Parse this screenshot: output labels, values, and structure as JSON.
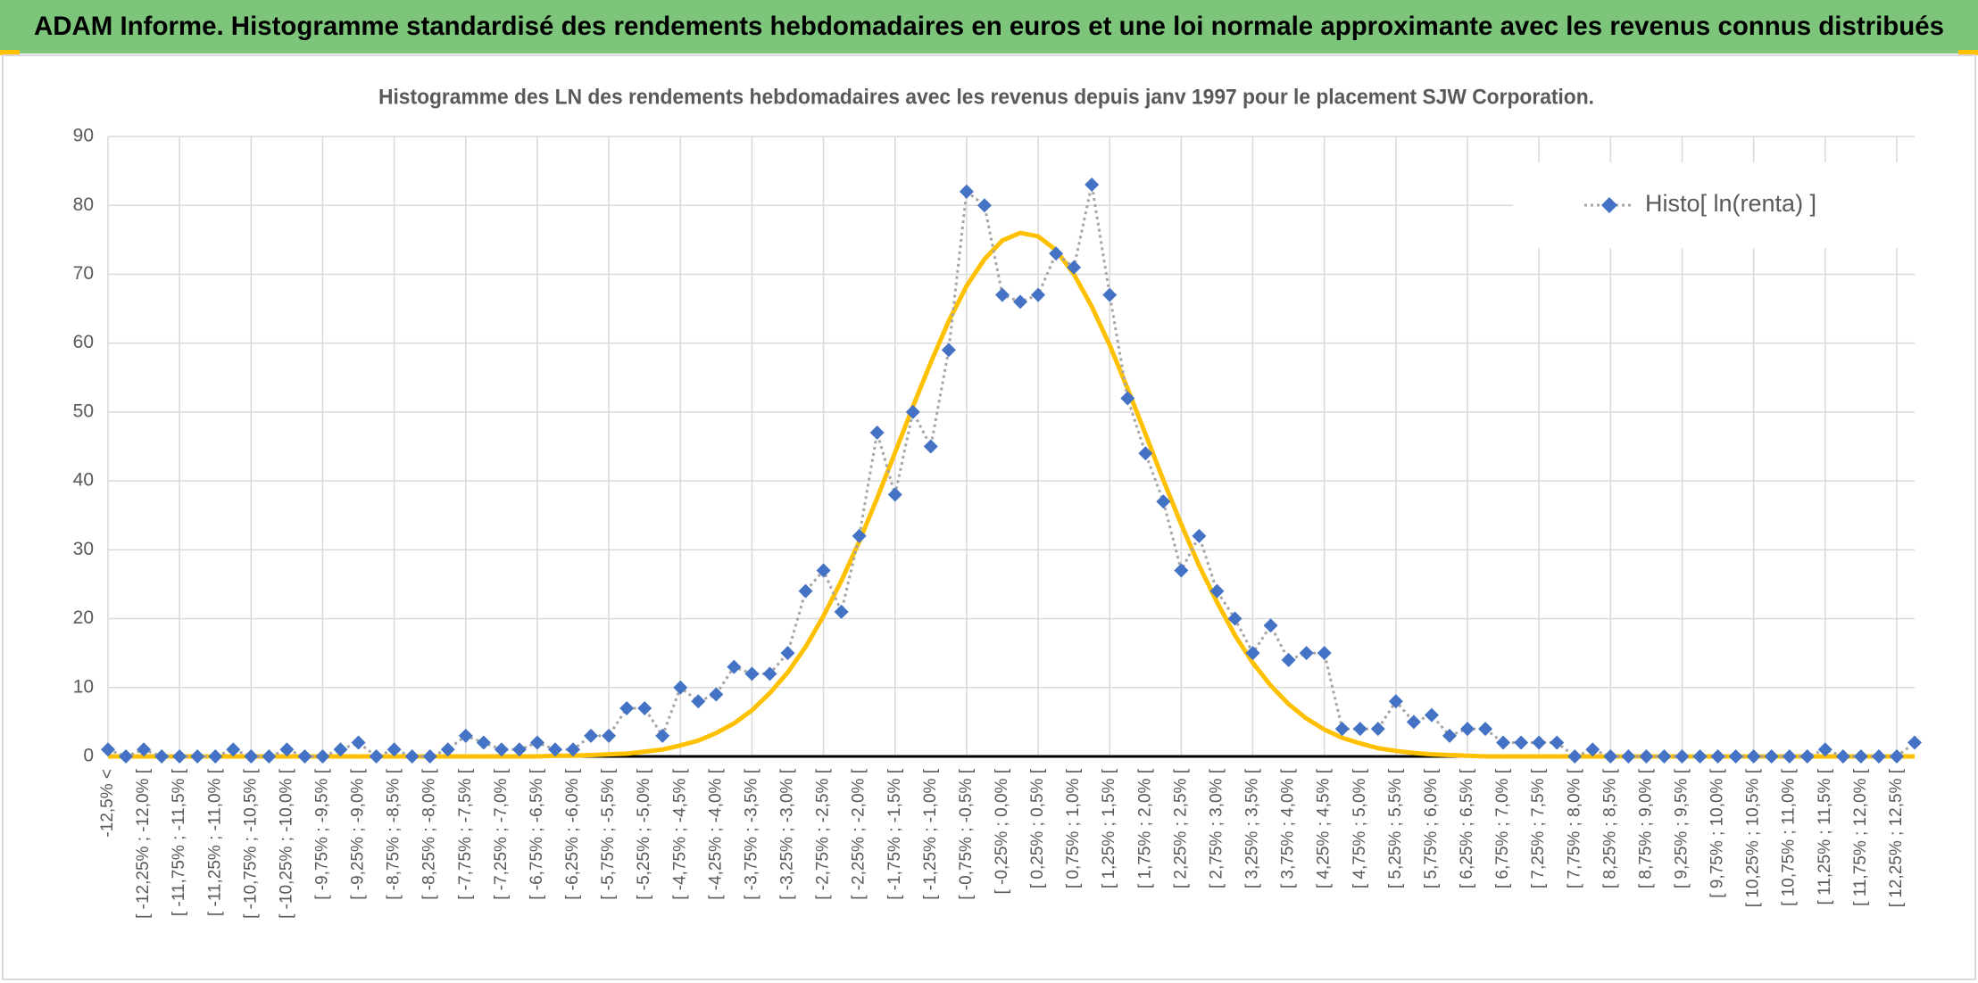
{
  "header": {
    "title": "ADAM Informe. Histogramme standardisé des rendements hebdomadaires en euros et une loi normale approximante avec les revenus connus distribués"
  },
  "chart_data": {
    "type": "line",
    "title": "Histogramme des LN des rendements hebdomadaires avec les revenus depuis janv 1997 pour le placement SJW Corporation.",
    "categories": [
      "-12,5% <",
      null,
      "[ -12,25% ; -12,0% [",
      null,
      "[ -11,75% ; -11,5% [",
      null,
      "[ -11,25% ; -11,0% [",
      null,
      "[ -10,75% ; -10,5% [",
      null,
      "[ -10,25% ; -10,0% [",
      null,
      "[ -9,75% ; -9,5% [",
      null,
      "[ -9,25% ; -9,0% [",
      null,
      "[ -8,75% ; -8,5% [",
      null,
      "[ -8,25% ; -8,0% [",
      null,
      "[ -7,75% ; -7,5% [",
      null,
      "[ -7,25% ; -7,0% [",
      null,
      "[ -6,75% ; -6,5% [",
      null,
      "[ -6,25% ; -6,0% [",
      null,
      "[ -5,75% ; -5,5% [",
      null,
      "[ -5,25% ; -5,0% [",
      null,
      "[ -4,75% ; -4,5% [",
      null,
      "[ -4,25% ; -4,0% [",
      null,
      "[ -3,75% ; -3,5% [",
      null,
      "[ -3,25% ; -3,0% [",
      null,
      "[ -2,75% ; -2,5% [",
      null,
      "[ -2,25% ; -2,0% [",
      null,
      "[ -1,75% ; -1,5% [",
      null,
      "[ -1,25% ; -1,0% [",
      null,
      "[ -0,75% ; -0,5% [",
      null,
      "[ -0,25% ; 0,0% [",
      null,
      "[ 0,25% ; 0,5% [",
      null,
      "[ 0,75% ; 1,0% [",
      null,
      "[ 1,25% ; 1,5% [",
      null,
      "[ 1,75% ; 2,0% [",
      null,
      "[ 2,25% ; 2,5% [",
      null,
      "[ 2,75% ; 3,0% [",
      null,
      "[ 3,25% ; 3,5% [",
      null,
      "[ 3,75% ; 4,0% [",
      null,
      "[ 4,25% ; 4,5% [",
      null,
      "[ 4,75% ; 5,0% [",
      null,
      "[ 5,25% ; 5,5% [",
      null,
      "[ 5,75% ; 6,0% [",
      null,
      "[ 6,25% ; 6,5% [",
      null,
      "[ 6,75% ; 7,0% [",
      null,
      "[ 7,25% ; 7,5% [",
      null,
      "[ 7,75% ; 8,0% [",
      null,
      "[ 8,25% ; 8,5% [",
      null,
      "[ 8,75% ; 9,0% [",
      null,
      "[ 9,25% ; 9,5% [",
      null,
      "[ 9,75% ; 10,0% [",
      null,
      "[ 10,25% ; 10,5% [",
      null,
      "[ 10,75% ; 11,0% [",
      null,
      "[ 11,25% ; 11,5% [",
      null,
      "[ 11,75% ; 12,0% [",
      null,
      "[ 12,25% ; 12,5% [",
      null
    ],
    "series": [
      {
        "name": "Histo[ ln(renta) ]",
        "color": "#4472c4",
        "line_color": "#a5a5a5",
        "values": [
          1,
          0,
          1,
          0,
          0,
          0,
          0,
          1,
          0,
          0,
          1,
          0,
          0,
          1,
          2,
          0,
          1,
          0,
          0,
          1,
          3,
          2,
          1,
          1,
          2,
          1,
          1,
          3,
          3,
          7,
          7,
          3,
          10,
          8,
          9,
          13,
          12,
          12,
          15,
          24,
          27,
          21,
          32,
          47,
          38,
          50,
          45,
          59,
          82,
          80,
          67,
          66,
          67,
          73,
          71,
          83,
          67,
          52,
          44,
          37,
          27,
          32,
          24,
          20,
          15,
          19,
          14,
          15,
          15,
          4,
          4,
          4,
          8,
          5,
          6,
          3,
          4,
          4,
          2,
          2,
          2,
          2,
          0,
          1,
          0,
          0,
          0,
          0,
          0,
          0,
          0,
          0,
          0,
          0,
          0,
          0,
          1,
          0,
          0,
          0,
          0,
          2
        ]
      },
      {
        "color": "#ffc000",
        "values": [
          0,
          0,
          0,
          0,
          0,
          0,
          0,
          0,
          0,
          0,
          0,
          0,
          0,
          0,
          0,
          0,
          0,
          0,
          0,
          0,
          0,
          0,
          0,
          0,
          0,
          0.1,
          0.1,
          0.2,
          0.3,
          0.4,
          0.7,
          1.0,
          1.6,
          2.3,
          3.4,
          4.8,
          6.7,
          9.2,
          12.2,
          15.9,
          20.4,
          25.5,
          31.2,
          37.5,
          44.1,
          50.8,
          57.2,
          63.2,
          68.3,
          72.2,
          74.9,
          76.0,
          75.5,
          73.5,
          70.0,
          65.3,
          59.7,
          53.4,
          46.8,
          40.1,
          33.7,
          27.7,
          22.4,
          17.6,
          13.6,
          10.3,
          7.6,
          5.5,
          3.9,
          2.7,
          1.9,
          1.2,
          0.8,
          0.5,
          0.3,
          0.2,
          0.1,
          0,
          0,
          0,
          0,
          0,
          0,
          0,
          0,
          0,
          0,
          0,
          0,
          0,
          0,
          0,
          0,
          0,
          0,
          0,
          0,
          0,
          0,
          0,
          0,
          0
        ]
      }
    ],
    "ylim": [
      0,
      90
    ],
    "yticks": [
      0,
      10,
      20,
      30,
      40,
      50,
      60,
      70,
      80,
      90
    ],
    "grid": true,
    "legend": "top-right"
  }
}
